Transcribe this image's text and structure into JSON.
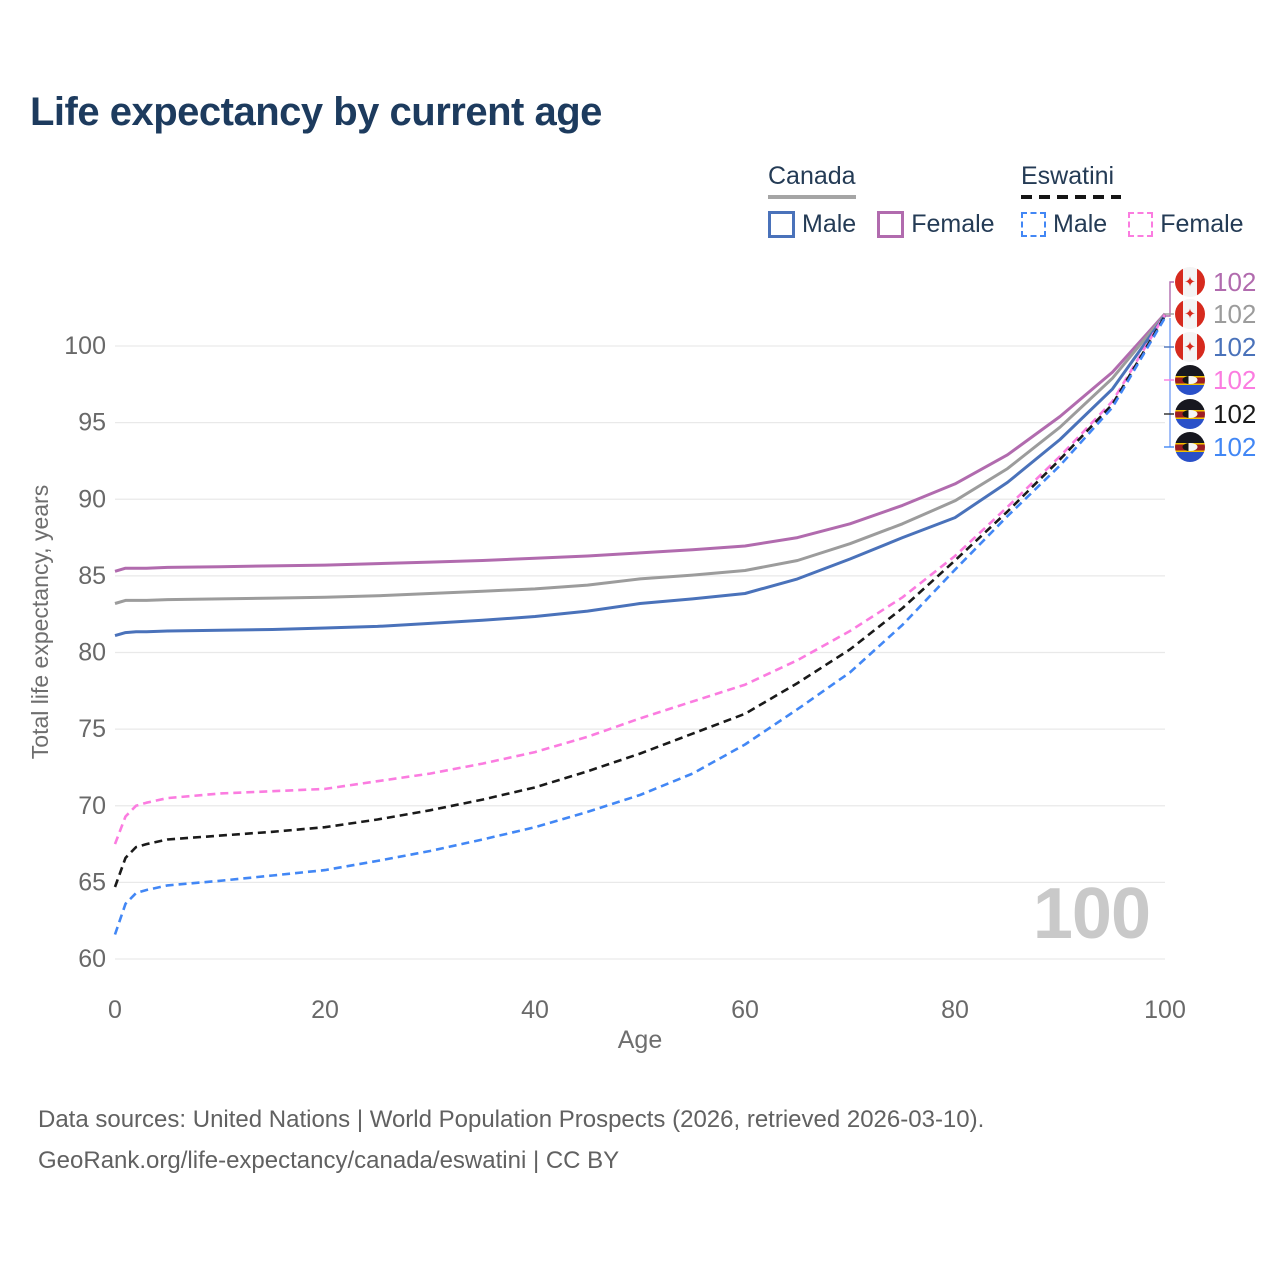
{
  "title": "Life expectancy by current age",
  "legend": {
    "groups": [
      {
        "name": "Canada",
        "line_style": "solid",
        "rule_color": "#a5a5a5",
        "items": [
          {
            "label": "Male",
            "color": "#4a72ba",
            "dashed": false
          },
          {
            "label": "Female",
            "color": "#b16bae",
            "dashed": false
          }
        ]
      },
      {
        "name": "Eswatini",
        "line_style": "dashed",
        "rule_color": "#151515",
        "items": [
          {
            "label": "Male",
            "color": "#4287f5",
            "dashed": true
          },
          {
            "label": "Female",
            "color": "#fb7ce0",
            "dashed": true
          }
        ]
      }
    ]
  },
  "watermark": "100",
  "footer": {
    "line1": "Data sources: United Nations | World Population Prospects (2026, retrieved 2026-03-10).",
    "line2": "GeoRank.org/life-expectancy/canada/eswatini | CC BY"
  },
  "chart_data": {
    "type": "line",
    "title": "Life expectancy by current age",
    "xlabel": "Age",
    "ylabel": "Total life expectancy, years",
    "xlim": [
      0,
      100
    ],
    "ylim": [
      60,
      102.5
    ],
    "xticks": [
      0,
      20,
      40,
      60,
      80,
      100
    ],
    "yticks": [
      60,
      65,
      70,
      75,
      80,
      85,
      90,
      95,
      100
    ],
    "grid": "horizontal-only",
    "legend_position": "top-right",
    "x": [
      0,
      1,
      2,
      3,
      5,
      10,
      15,
      20,
      25,
      30,
      35,
      40,
      45,
      50,
      55,
      60,
      65,
      70,
      75,
      80,
      85,
      90,
      95,
      100
    ],
    "series": [
      {
        "name": "Canada Female",
        "country": "Canada",
        "sex": "Female",
        "flag": "canada",
        "color": "#b16bae",
        "dashed": false,
        "end_label": "102",
        "values": [
          85.3,
          85.5,
          85.5,
          85.5,
          85.55,
          85.6,
          85.65,
          85.7,
          85.8,
          85.9,
          86.0,
          86.15,
          86.3,
          86.5,
          86.7,
          86.95,
          87.5,
          88.4,
          89.6,
          91.0,
          92.9,
          95.4,
          98.3,
          102.1
        ]
      },
      {
        "name": "Canada Both sexes",
        "country": "Canada",
        "sex": "Both",
        "flag": "canada",
        "color": "#9c9c9c",
        "dashed": false,
        "end_label": "102",
        "values": [
          83.2,
          83.4,
          83.4,
          83.4,
          83.45,
          83.5,
          83.55,
          83.6,
          83.7,
          83.85,
          84.0,
          84.15,
          84.4,
          84.8,
          85.05,
          85.35,
          86.0,
          87.1,
          88.4,
          89.9,
          92.0,
          94.7,
          97.9,
          102.05
        ]
      },
      {
        "name": "Canada Male",
        "country": "Canada",
        "sex": "Male",
        "flag": "canada",
        "color": "#4a72ba",
        "dashed": false,
        "end_label": "102",
        "values": [
          81.1,
          81.3,
          81.35,
          81.35,
          81.4,
          81.45,
          81.5,
          81.6,
          81.7,
          81.9,
          82.1,
          82.35,
          82.7,
          83.2,
          83.5,
          83.85,
          84.8,
          86.1,
          87.5,
          88.8,
          91.1,
          93.9,
          97.2,
          102.0
        ]
      },
      {
        "name": "Eswatini Female",
        "country": "Eswatini",
        "sex": "Female",
        "flag": "eswatini",
        "color": "#fb7ce0",
        "dashed": true,
        "end_label": "102",
        "values": [
          67.5,
          69.3,
          70.0,
          70.2,
          70.5,
          70.8,
          70.95,
          71.1,
          71.6,
          72.1,
          72.75,
          73.5,
          74.5,
          75.7,
          76.8,
          77.9,
          79.5,
          81.4,
          83.6,
          86.3,
          89.5,
          92.8,
          96.4,
          102.05
        ]
      },
      {
        "name": "Eswatini Both sexes",
        "country": "Eswatini",
        "sex": "Both",
        "flag": "eswatini",
        "color": "#1a1a1a",
        "dashed": true,
        "end_label": "102",
        "values": [
          64.7,
          66.6,
          67.3,
          67.5,
          67.8,
          68.05,
          68.3,
          68.6,
          69.1,
          69.7,
          70.4,
          71.2,
          72.25,
          73.4,
          74.7,
          76.0,
          78.0,
          80.2,
          82.9,
          86.0,
          89.2,
          92.6,
          96.2,
          101.95
        ]
      },
      {
        "name": "Eswatini Male",
        "country": "Eswatini",
        "sex": "Male",
        "flag": "eswatini",
        "color": "#4287f5",
        "dashed": true,
        "end_label": "102",
        "values": [
          61.6,
          63.6,
          64.3,
          64.5,
          64.8,
          65.1,
          65.45,
          65.8,
          66.4,
          67.05,
          67.8,
          68.6,
          69.6,
          70.7,
          72.1,
          74.0,
          76.3,
          78.7,
          81.8,
          85.4,
          88.9,
          92.2,
          96.0,
          101.85
        ]
      }
    ]
  },
  "colors": {
    "title": "#1d3b5e",
    "tick_label": "#696969",
    "axis_label": "#6e6e6e",
    "gridline": "#e9e9e9",
    "watermark": "#c9c9c9",
    "footer": "#616161",
    "connector_blue": "#7aa3f5"
  }
}
